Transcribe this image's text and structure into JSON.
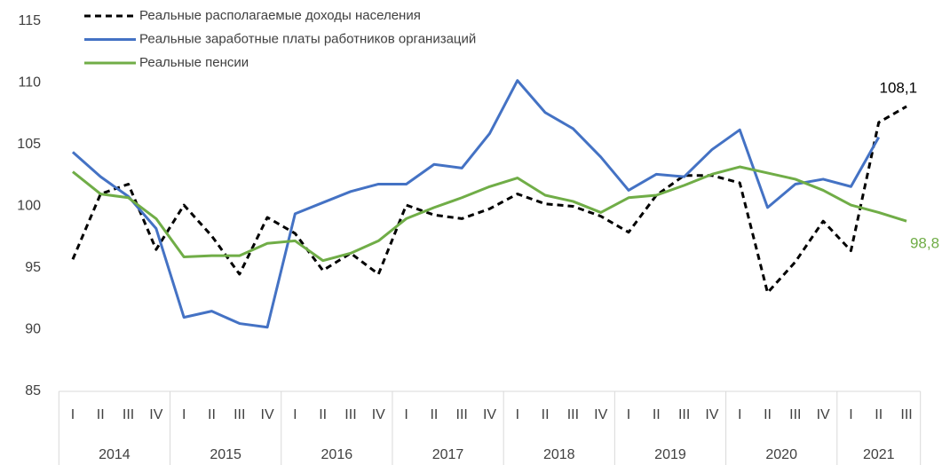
{
  "chart_data": {
    "type": "line",
    "categories": [
      "I",
      "II",
      "III",
      "IV",
      "I",
      "II",
      "III",
      "IV",
      "I",
      "II",
      "III",
      "IV",
      "I",
      "II",
      "III",
      "IV",
      "I",
      "II",
      "III",
      "IV",
      "I",
      "II",
      "III",
      "IV",
      "I",
      "II",
      "III",
      "IV",
      "I",
      "II",
      "III"
    ],
    "category_groups": [
      {
        "label": "2014",
        "count": 4
      },
      {
        "label": "2015",
        "count": 4
      },
      {
        "label": "2016",
        "count": 4
      },
      {
        "label": "2017",
        "count": 4
      },
      {
        "label": "2018",
        "count": 4
      },
      {
        "label": "2019",
        "count": 4
      },
      {
        "label": "2020",
        "count": 4
      },
      {
        "label": "2021",
        "count": 3
      }
    ],
    "series": [
      {
        "name": "Реальные располагаемые доходы населения",
        "color": "#000000",
        "dashed": true,
        "values": [
          95.7,
          101.0,
          101.8,
          96.5,
          100.1,
          97.6,
          94.5,
          99.1,
          97.8,
          94.8,
          96.2,
          94.5,
          100.1,
          99.3,
          99.0,
          99.8,
          101.0,
          100.2,
          100.0,
          99.2,
          97.9,
          100.9,
          102.5,
          102.5,
          101.9,
          93.0,
          95.5,
          98.8,
          96.4,
          106.8,
          108.1
        ],
        "value_labels": [
          null,
          null,
          null,
          null,
          null,
          null,
          null,
          null,
          null,
          null,
          null,
          null,
          null,
          null,
          null,
          null,
          null,
          null,
          null,
          null,
          null,
          null,
          null,
          null,
          null,
          null,
          null,
          null,
          null,
          null,
          "108,1"
        ]
      },
      {
        "name": "Реальные заработные платы работников организаций",
        "color": "#4472c4",
        "dashed": false,
        "values": [
          104.4,
          102.4,
          100.8,
          98.2,
          91.0,
          91.5,
          90.5,
          90.2,
          99.4,
          100.3,
          101.2,
          101.8,
          101.8,
          103.4,
          103.1,
          105.9,
          110.2,
          107.6,
          106.3,
          104.0,
          101.3,
          102.6,
          102.4,
          104.6,
          106.2,
          99.9,
          101.8,
          102.2,
          101.6,
          105.6,
          null
        ]
      },
      {
        "name": "Реальные пенсии",
        "color": "#70ad47",
        "dashed": false,
        "values": [
          102.8,
          101.0,
          100.7,
          99.0,
          95.9,
          96.0,
          96.0,
          97.0,
          97.2,
          95.6,
          96.2,
          97.2,
          99.0,
          99.9,
          100.7,
          101.6,
          102.3,
          100.9,
          100.4,
          99.5,
          100.7,
          100.9,
          101.7,
          102.6,
          103.2,
          102.7,
          102.2,
          101.3,
          100.1,
          99.5,
          98.8
        ],
        "value_labels": [
          null,
          null,
          null,
          null,
          null,
          null,
          null,
          null,
          null,
          null,
          null,
          null,
          null,
          null,
          null,
          null,
          null,
          null,
          null,
          null,
          null,
          null,
          null,
          null,
          null,
          null,
          null,
          null,
          null,
          null,
          "98,8"
        ]
      }
    ],
    "ylim": [
      85,
      115
    ],
    "yticks": [
      85,
      90,
      95,
      100,
      105,
      110,
      115
    ],
    "grid": false,
    "legend": "top-left"
  }
}
